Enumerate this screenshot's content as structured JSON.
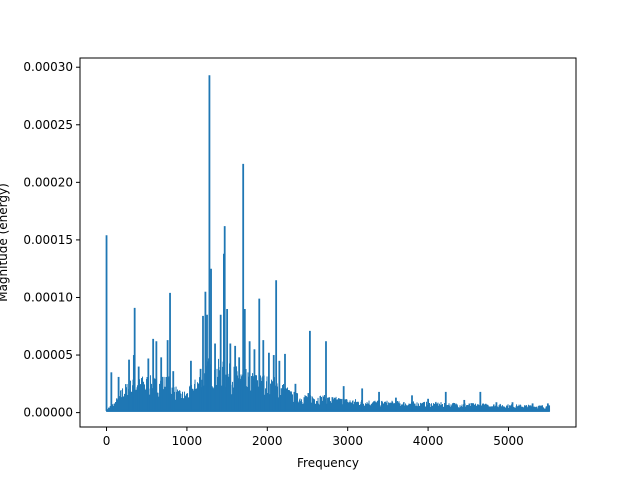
{
  "chart_data": {
    "type": "line",
    "title": "",
    "xlabel": "Frequency",
    "ylabel": "Magnitude (energy)",
    "xlim": [
      -330,
      5840
    ],
    "ylim": [
      -1.25e-05,
      0.000308
    ],
    "xticks": [
      0,
      1000,
      2000,
      3000,
      4000,
      5000
    ],
    "xtick_labels": [
      "0",
      "1000",
      "2000",
      "3000",
      "4000",
      "5000"
    ],
    "yticks": [
      0,
      5e-05,
      0.0001,
      0.00015,
      0.0002,
      0.00025,
      0.0003
    ],
    "ytick_labels": [
      "0.00000",
      "0.00005",
      "0.00010",
      "0.00015",
      "0.00020",
      "0.00025",
      "0.00030"
    ],
    "grid": false,
    "series": [
      {
        "color": "#1f77b4",
        "x_range": [
          0,
          5512
        ],
        "baseline": 1.5e-06,
        "envelope": [
          [
            0,
            2e-06
          ],
          [
            100,
            8e-06
          ],
          [
            200,
            2.2e-05
          ],
          [
            300,
            2.8e-05
          ],
          [
            400,
            3e-05
          ],
          [
            500,
            3.2e-05
          ],
          [
            600,
            3e-05
          ],
          [
            700,
            3.2e-05
          ],
          [
            800,
            3e-05
          ],
          [
            900,
            1.8e-05
          ],
          [
            1000,
            1.8e-05
          ],
          [
            1100,
            2.8e-05
          ],
          [
            1200,
            4e-05
          ],
          [
            1300,
            5e-05
          ],
          [
            1400,
            4.5e-05
          ],
          [
            1500,
            4.2e-05
          ],
          [
            1600,
            4e-05
          ],
          [
            1700,
            3.8e-05
          ],
          [
            1800,
            3.5e-05
          ],
          [
            1900,
            3.3e-05
          ],
          [
            2000,
            3.2e-05
          ],
          [
            2100,
            3e-05
          ],
          [
            2200,
            2.5e-05
          ],
          [
            2300,
            1.8e-05
          ],
          [
            2400,
            1.5e-05
          ],
          [
            2500,
            1.6e-05
          ],
          [
            2600,
            1.5e-05
          ],
          [
            2700,
            1.4e-05
          ],
          [
            2800,
            1.3e-05
          ],
          [
            3000,
            1.1e-05
          ],
          [
            3500,
            9e-06
          ],
          [
            4000,
            8e-06
          ],
          [
            4500,
            7e-06
          ],
          [
            5000,
            6e-06
          ],
          [
            5512,
            5e-06
          ]
        ],
        "peaks": [
          [
            0,
            0.000154
          ],
          [
            60,
            3.5e-05
          ],
          [
            150,
            3.1e-05
          ],
          [
            280,
            4.6e-05
          ],
          [
            340,
            5e-05
          ],
          [
            350,
            9.1e-05
          ],
          [
            400,
            4e-05
          ],
          [
            440,
            3e-05
          ],
          [
            520,
            4.7e-05
          ],
          [
            580,
            6.4e-05
          ],
          [
            620,
            6.2e-05
          ],
          [
            680,
            4.8e-05
          ],
          [
            760,
            6.3e-05
          ],
          [
            790,
            0.000104
          ],
          [
            830,
            3.6e-05
          ],
          [
            1050,
            4.5e-05
          ],
          [
            1170,
            3.8e-05
          ],
          [
            1200,
            8.4e-05
          ],
          [
            1230,
            0.000105
          ],
          [
            1250,
            8.5e-05
          ],
          [
            1280,
            0.000293
          ],
          [
            1300,
            0.000125
          ],
          [
            1350,
            6e-05
          ],
          [
            1420,
            8.5e-05
          ],
          [
            1460,
            0.000138
          ],
          [
            1470,
            0.000162
          ],
          [
            1500,
            9e-05
          ],
          [
            1540,
            6e-05
          ],
          [
            1600,
            5.8e-05
          ],
          [
            1650,
            4.8e-05
          ],
          [
            1700,
            0.000216
          ],
          [
            1720,
            9e-05
          ],
          [
            1780,
            6.2e-05
          ],
          [
            1840,
            5.5e-05
          ],
          [
            1900,
            9.9e-05
          ],
          [
            1950,
            6.3e-05
          ],
          [
            2020,
            5.2e-05
          ],
          [
            2080,
            5e-05
          ],
          [
            2110,
            0.000115
          ],
          [
            2150,
            4.5e-05
          ],
          [
            2220,
            5.1e-05
          ],
          [
            2350,
            2.5e-05
          ],
          [
            2530,
            7.1e-05
          ],
          [
            2730,
            6.2e-05
          ],
          [
            2950,
            2.3e-05
          ],
          [
            3180,
            2.1e-05
          ],
          [
            3390,
            1.8e-05
          ],
          [
            3600,
            1.3e-05
          ],
          [
            3800,
            1.5e-05
          ],
          [
            4000,
            1.2e-05
          ],
          [
            4220,
            1.8e-05
          ],
          [
            4450,
            1.1e-05
          ],
          [
            4650,
            1.8e-05
          ],
          [
            4850,
            9e-06
          ],
          [
            5050,
            9e-06
          ],
          [
            5300,
            8e-06
          ],
          [
            5490,
            8e-06
          ]
        ]
      }
    ]
  }
}
